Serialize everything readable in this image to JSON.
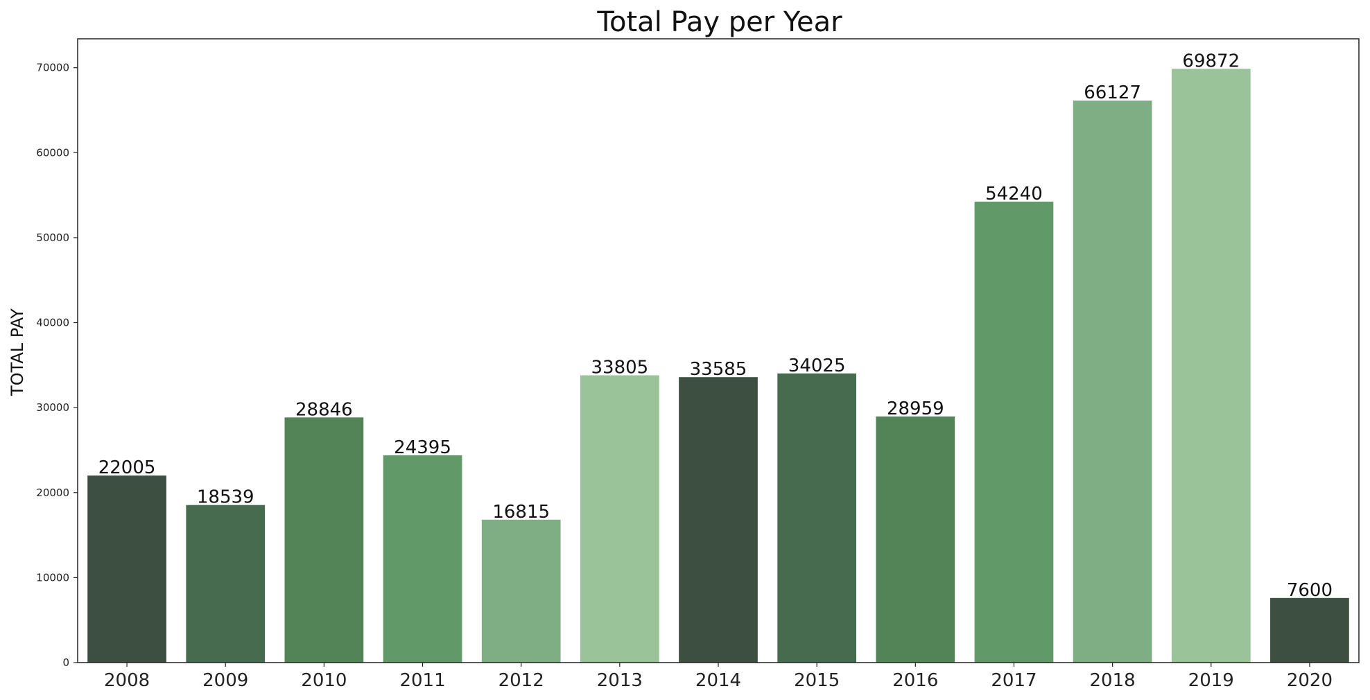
{
  "chart_data": {
    "type": "bar",
    "title": "Total Pay per Year",
    "xlabel": "",
    "ylabel": "TOTAL PAY",
    "categories": [
      "2008",
      "2009",
      "2010",
      "2011",
      "2012",
      "2013",
      "2014",
      "2015",
      "2016",
      "2017",
      "2018",
      "2019",
      "2020"
    ],
    "values": [
      22005,
      18539,
      28846,
      24395,
      16815,
      33805,
      33585,
      34025,
      28959,
      54240,
      66127,
      69872,
      7600
    ],
    "data_labels": [
      "22005",
      "18539",
      "28846",
      "24395",
      "16815",
      "33805",
      "33585",
      "34025",
      "28959",
      "54240",
      "66127",
      "69872",
      "7600"
    ],
    "colors": [
      "#3d4f40",
      "#476b4e",
      "#528457",
      "#629968",
      "#80ae84",
      "#9bc399",
      "#3d4f40",
      "#476b4e",
      "#528457",
      "#629968",
      "#80ae84",
      "#9bc399",
      "#3d4f40"
    ],
    "ylim": [
      0,
      73400
    ],
    "yticks": [
      0,
      10000,
      20000,
      30000,
      40000,
      50000,
      60000,
      70000
    ],
    "ytick_labels": [
      "0",
      "10000",
      "20000",
      "30000",
      "40000",
      "50000",
      "60000",
      "70000"
    ],
    "grid": false,
    "legend": "none"
  }
}
